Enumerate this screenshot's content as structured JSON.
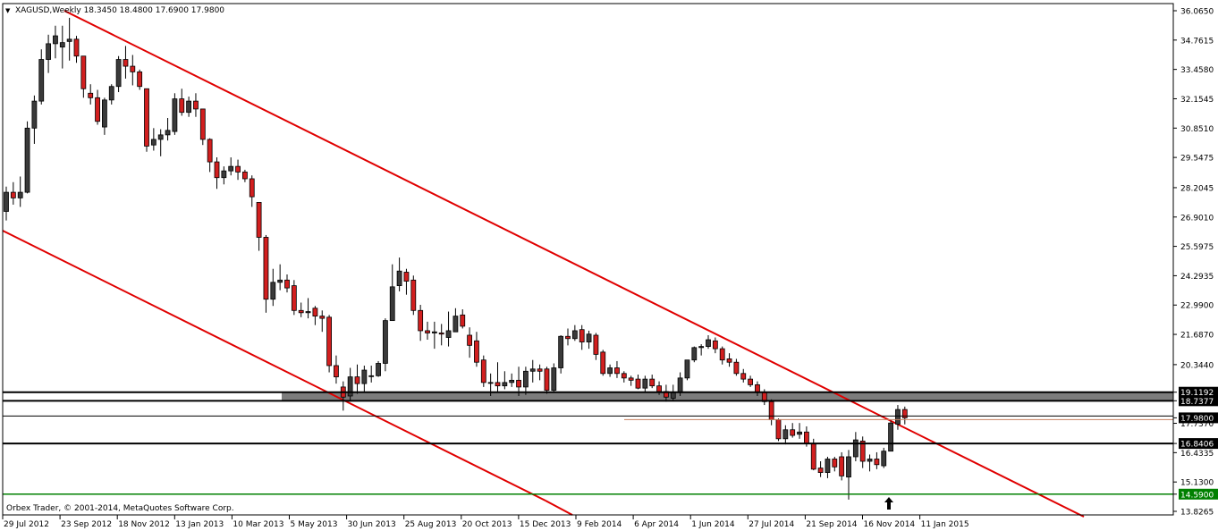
{
  "header": {
    "menu_arrow": "▼",
    "symbol_info": "XAGUSD,Weekly  18.3450 18.4800 17.6900 17.9800"
  },
  "footer": {
    "copyright": "Orbex Trader, © 2001-2014, MetaQuotes Software Corp."
  },
  "colors": {
    "bull_fill": "#3a3a3a",
    "bear_fill": "#d21f1f",
    "channel_line": "#e00000",
    "support_band": "#7c7c7c",
    "support_line": "#000000",
    "bid_line": "#c88060",
    "green_line": "#008000",
    "grid_text": "#000000"
  },
  "price_axis": {
    "ticks": [
      "36.0650",
      "34.7615",
      "33.4580",
      "32.1545",
      "30.8510",
      "29.5475",
      "28.2045",
      "26.9010",
      "25.5975",
      "24.2935",
      "22.9900",
      "21.6870",
      "20.3440",
      "19.1192",
      "18.7377",
      "17.9800",
      "17.7370",
      "16.8406",
      "16.4335",
      "15.1300",
      "14.5900",
      "13.8265"
    ],
    "highlights": [
      {
        "value": "19.1192",
        "style": "black"
      },
      {
        "value": "18.7377",
        "style": "black"
      },
      {
        "value": "17.9800",
        "style": "black"
      },
      {
        "value": "16.8406",
        "style": "black"
      },
      {
        "value": "14.5900",
        "style": "green"
      }
    ]
  },
  "time_axis": {
    "labels": [
      "29 Jul 2012",
      "23 Sep 2012",
      "18 Nov 2012",
      "13 Jan 2013",
      "10 Mar 2013",
      "5 May 2013",
      "30 Jun 2013",
      "25 Aug 2013",
      "20 Oct 2013",
      "15 Dec 2013",
      "9 Feb 2014",
      "6 Apr 2014",
      "1 Jun 2014",
      "27 Jul 2014",
      "21 Sep 2014",
      "16 Nov 2014",
      "11 Jan 2015"
    ]
  },
  "horizontal_levels": {
    "zone_top": 19.1192,
    "zone_bottom": 18.7377,
    "upper_line": 19.1192,
    "line_17_98": 17.98,
    "line_16_84": 16.8406,
    "line_14_59": 14.59
  },
  "annotations": {
    "up_arrow": "🡅"
  },
  "chart_data": {
    "type": "candlestick",
    "symbol": "XAGUSD",
    "timeframe": "Weekly",
    "ylim": [
      13.8265,
      36.065
    ],
    "candles": [
      [
        27.15,
        28.25,
        26.75,
        28.0
      ],
      [
        28.0,
        28.45,
        27.45,
        27.75
      ],
      [
        27.75,
        28.7,
        27.35,
        28.0
      ],
      [
        28.0,
        31.15,
        27.95,
        30.85
      ],
      [
        30.85,
        32.3,
        30.15,
        32.05
      ],
      [
        32.05,
        34.35,
        31.9,
        33.9
      ],
      [
        33.9,
        35.0,
        33.3,
        34.6
      ],
      [
        34.6,
        35.4,
        33.95,
        34.95
      ],
      [
        34.45,
        35.4,
        33.5,
        34.65
      ],
      [
        34.7,
        35.75,
        33.85,
        34.8
      ],
      [
        34.8,
        34.95,
        33.75,
        34.05
      ],
      [
        34.05,
        34.05,
        32.2,
        32.6
      ],
      [
        32.4,
        32.8,
        31.9,
        32.2
      ],
      [
        32.2,
        32.55,
        31.0,
        31.15
      ],
      [
        30.9,
        32.2,
        30.55,
        32.1
      ],
      [
        32.1,
        32.8,
        31.9,
        32.7
      ],
      [
        32.7,
        34.05,
        32.45,
        33.9
      ],
      [
        33.9,
        34.5,
        33.05,
        33.6
      ],
      [
        33.6,
        34.1,
        32.75,
        33.35
      ],
      [
        33.35,
        33.45,
        32.55,
        32.7
      ],
      [
        32.6,
        32.6,
        29.8,
        30.05
      ],
      [
        30.1,
        30.85,
        29.85,
        30.35
      ],
      [
        30.35,
        30.8,
        29.6,
        30.55
      ],
      [
        30.55,
        31.3,
        30.3,
        30.75
      ],
      [
        30.7,
        32.4,
        30.55,
        32.15
      ],
      [
        32.15,
        32.6,
        31.4,
        31.55
      ],
      [
        31.55,
        32.25,
        31.35,
        32.05
      ],
      [
        32.05,
        32.4,
        31.35,
        31.7
      ],
      [
        31.7,
        31.7,
        30.1,
        30.35
      ],
      [
        30.35,
        30.4,
        28.9,
        29.35
      ],
      [
        29.35,
        29.55,
        28.15,
        28.65
      ],
      [
        28.65,
        29.15,
        28.35,
        28.95
      ],
      [
        28.95,
        29.55,
        28.75,
        29.15
      ],
      [
        29.15,
        29.45,
        28.55,
        28.9
      ],
      [
        28.9,
        29.0,
        28.45,
        28.6
      ],
      [
        28.6,
        28.75,
        27.35,
        27.8
      ],
      [
        27.55,
        27.55,
        25.4,
        26.0
      ],
      [
        26.0,
        26.1,
        22.65,
        23.25
      ],
      [
        23.25,
        24.6,
        22.95,
        24.0
      ],
      [
        24.0,
        24.8,
        23.65,
        24.1
      ],
      [
        24.1,
        24.35,
        23.55,
        23.75
      ],
      [
        23.85,
        24.1,
        22.55,
        22.75
      ],
      [
        22.75,
        23.1,
        22.45,
        22.65
      ],
      [
        22.65,
        23.3,
        22.4,
        22.7
      ],
      [
        22.85,
        22.95,
        22.1,
        22.5
      ],
      [
        22.5,
        22.75,
        21.8,
        22.4
      ],
      [
        22.45,
        22.55,
        20.0,
        20.3
      ],
      [
        20.3,
        20.75,
        19.5,
        19.8
      ],
      [
        19.35,
        19.6,
        18.3,
        18.9
      ],
      [
        18.95,
        20.2,
        18.7,
        19.8
      ],
      [
        19.8,
        20.35,
        19.05,
        19.5
      ],
      [
        19.5,
        20.3,
        19.15,
        20.1
      ],
      [
        19.85,
        20.3,
        19.55,
        19.85
      ],
      [
        19.85,
        20.5,
        19.8,
        20.4
      ],
      [
        20.4,
        22.4,
        20.05,
        22.3
      ],
      [
        22.3,
        24.8,
        22.3,
        23.8
      ],
      [
        23.85,
        25.1,
        23.6,
        24.5
      ],
      [
        24.45,
        24.6,
        23.45,
        24.05
      ],
      [
        24.1,
        24.3,
        22.55,
        22.75
      ],
      [
        22.75,
        23.0,
        21.4,
        21.85
      ],
      [
        21.85,
        22.25,
        21.45,
        21.75
      ],
      [
        21.75,
        22.25,
        21.05,
        21.8
      ],
      [
        21.75,
        22.15,
        21.2,
        21.7
      ],
      [
        21.55,
        22.7,
        21.15,
        21.85
      ],
      [
        21.8,
        22.85,
        21.8,
        22.5
      ],
      [
        22.55,
        22.8,
        21.95,
        22.05
      ],
      [
        21.65,
        22.0,
        20.65,
        21.2
      ],
      [
        21.4,
        21.8,
        20.25,
        20.45
      ],
      [
        20.55,
        20.75,
        19.35,
        19.55
      ],
      [
        19.55,
        19.95,
        18.95,
        19.55
      ],
      [
        19.55,
        20.45,
        19.15,
        19.4
      ],
      [
        19.4,
        20.05,
        19.25,
        19.55
      ],
      [
        19.55,
        19.95,
        19.35,
        19.65
      ],
      [
        19.65,
        20.25,
        18.95,
        19.35
      ],
      [
        19.35,
        20.25,
        19.0,
        20.05
      ],
      [
        20.05,
        20.55,
        19.55,
        20.15
      ],
      [
        20.15,
        20.35,
        19.65,
        20.05
      ],
      [
        20.15,
        20.25,
        19.05,
        19.2
      ],
      [
        19.2,
        20.4,
        19.15,
        20.2
      ],
      [
        20.2,
        21.65,
        19.95,
        21.6
      ],
      [
        21.6,
        21.95,
        21.2,
        21.5
      ],
      [
        21.5,
        22.1,
        21.4,
        21.85
      ],
      [
        21.9,
        22.1,
        21.0,
        21.35
      ],
      [
        21.35,
        21.85,
        21.05,
        21.7
      ],
      [
        21.65,
        21.75,
        20.55,
        20.8
      ],
      [
        20.9,
        21.0,
        19.85,
        19.95
      ],
      [
        19.95,
        20.35,
        19.8,
        20.2
      ],
      [
        20.2,
        20.5,
        19.75,
        19.95
      ],
      [
        19.95,
        20.05,
        19.55,
        19.75
      ],
      [
        19.75,
        19.85,
        19.4,
        19.65
      ],
      [
        19.7,
        19.9,
        19.25,
        19.3
      ],
      [
        19.3,
        19.85,
        19.1,
        19.7
      ],
      [
        19.7,
        19.9,
        19.3,
        19.4
      ],
      [
        19.4,
        19.6,
        19.0,
        19.15
      ],
      [
        19.15,
        19.45,
        18.7,
        18.9
      ],
      [
        18.85,
        19.45,
        18.75,
        19.1
      ],
      [
        19.1,
        20.0,
        18.95,
        19.75
      ],
      [
        19.75,
        20.55,
        19.65,
        20.55
      ],
      [
        20.55,
        21.15,
        20.45,
        21.1
      ],
      [
        21.1,
        21.25,
        20.75,
        21.15
      ],
      [
        21.15,
        21.65,
        21.05,
        21.45
      ],
      [
        21.4,
        21.55,
        20.85,
        21.05
      ],
      [
        21.05,
        21.15,
        20.35,
        20.55
      ],
      [
        20.6,
        20.85,
        20.25,
        20.45
      ],
      [
        20.45,
        20.6,
        19.85,
        19.95
      ],
      [
        19.95,
        20.15,
        19.55,
        19.7
      ],
      [
        19.7,
        19.85,
        19.35,
        19.45
      ],
      [
        19.45,
        19.6,
        18.95,
        19.1
      ],
      [
        19.1,
        19.25,
        18.55,
        18.7
      ],
      [
        18.7,
        18.8,
        17.65,
        17.9
      ],
      [
        17.9,
        17.95,
        16.95,
        17.05
      ],
      [
        17.05,
        17.65,
        16.8,
        17.45
      ],
      [
        17.45,
        17.75,
        17.1,
        17.2
      ],
      [
        17.25,
        17.75,
        17.05,
        17.35
      ],
      [
        17.35,
        17.6,
        16.7,
        16.85
      ],
      [
        16.85,
        17.05,
        15.65,
        15.7
      ],
      [
        15.75,
        16.05,
        15.35,
        15.55
      ],
      [
        15.55,
        16.25,
        15.3,
        16.15
      ],
      [
        16.15,
        16.25,
        15.6,
        15.8
      ],
      [
        16.25,
        16.45,
        15.2,
        15.4
      ],
      [
        15.35,
        16.55,
        14.35,
        16.25
      ],
      [
        16.25,
        17.35,
        16.05,
        17.0
      ],
      [
        16.95,
        17.15,
        15.75,
        16.05
      ],
      [
        16.05,
        16.35,
        15.6,
        16.15
      ],
      [
        16.15,
        16.45,
        15.7,
        15.9
      ],
      [
        15.85,
        16.65,
        15.75,
        16.5
      ],
      [
        16.5,
        17.85,
        16.5,
        17.75
      ],
      [
        17.7,
        18.55,
        17.45,
        18.35
      ],
      [
        18.35,
        18.48,
        17.69,
        17.98
      ]
    ]
  }
}
